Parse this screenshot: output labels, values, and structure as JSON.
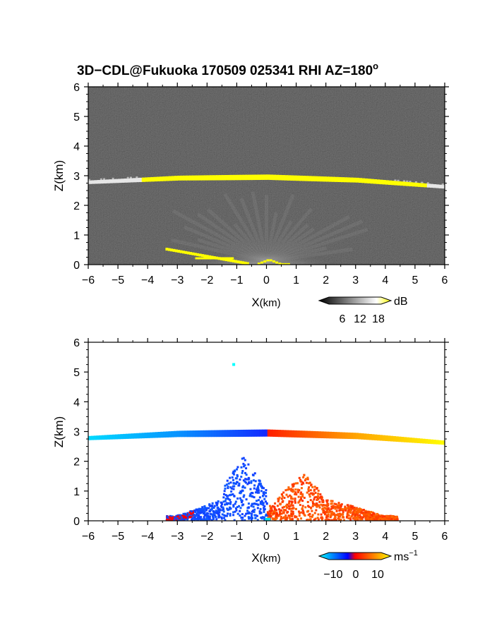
{
  "title": "3D−CDL@Fukuoka 170509 025341 RHI AZ=180",
  "title_degree": "o",
  "chart_data": [
    {
      "type": "heatmap",
      "variable": "reflectivity",
      "xlabel_main": "X",
      "xlabel_unit": "(km)",
      "ylabel": "Z(km)",
      "xlim": [
        -6,
        6
      ],
      "ylim": [
        0,
        6
      ],
      "x_ticks": [
        "−6",
        "−5",
        "−4",
        "−3",
        "−2",
        "−1",
        "0",
        "1",
        "2",
        "3",
        "4",
        "5",
        "6"
      ],
      "y_ticks": [
        "0",
        "1",
        "2",
        "3",
        "4",
        "5",
        "6"
      ],
      "background_color": "#1e1e1e",
      "features": [
        {
          "name": "cloud layer",
          "x_range": [
            -6,
            6
          ],
          "z": [
            2.78,
            2.92,
            2.95,
            2.85,
            2.62
          ],
          "x_at": [
            -6,
            -3,
            0,
            3,
            6
          ],
          "color": "#ffff00"
        },
        {
          "name": "near-ground echo",
          "x_range": [
            -3.4,
            1.5
          ],
          "z_top": 0.7
        }
      ],
      "colorbar": {
        "ticks": [
          "6",
          "12",
          "18"
        ],
        "unit": "dB",
        "colors": [
          "#000000",
          "#ffffff",
          "#ffff00"
        ]
      }
    },
    {
      "type": "heatmap",
      "variable": "doppler velocity",
      "xlabel_main": "X",
      "xlabel_unit": "(km)",
      "ylabel": "Z(km)",
      "xlim": [
        -6,
        6
      ],
      "ylim": [
        0,
        6
      ],
      "x_ticks": [
        "−6",
        "−5",
        "−4",
        "−3",
        "−2",
        "−1",
        "0",
        "1",
        "2",
        "3",
        "4",
        "5",
        "6"
      ],
      "y_ticks": [
        "0",
        "1",
        "2",
        "3",
        "4",
        "5",
        "6"
      ],
      "features": [
        {
          "name": "cloud layer",
          "x_range": [
            -6,
            6
          ],
          "velocity_at": [
            -10,
            -6,
            0,
            6,
            10
          ],
          "x_at": [
            -6,
            -3,
            0,
            3,
            6
          ]
        },
        {
          "name": "lower echo",
          "x_range": [
            -3.5,
            4.5
          ],
          "z_top": 2.3
        },
        {
          "name": "isolated point",
          "x": -1.15,
          "z": 5.3
        }
      ],
      "colorbar": {
        "ticks": [
          "−10",
          "0",
          "10"
        ],
        "unit": "ms",
        "unit_exp": "−1",
        "colors": [
          "#00ffff",
          "#0000ff",
          "#ff0000",
          "#ffff00"
        ]
      }
    }
  ]
}
